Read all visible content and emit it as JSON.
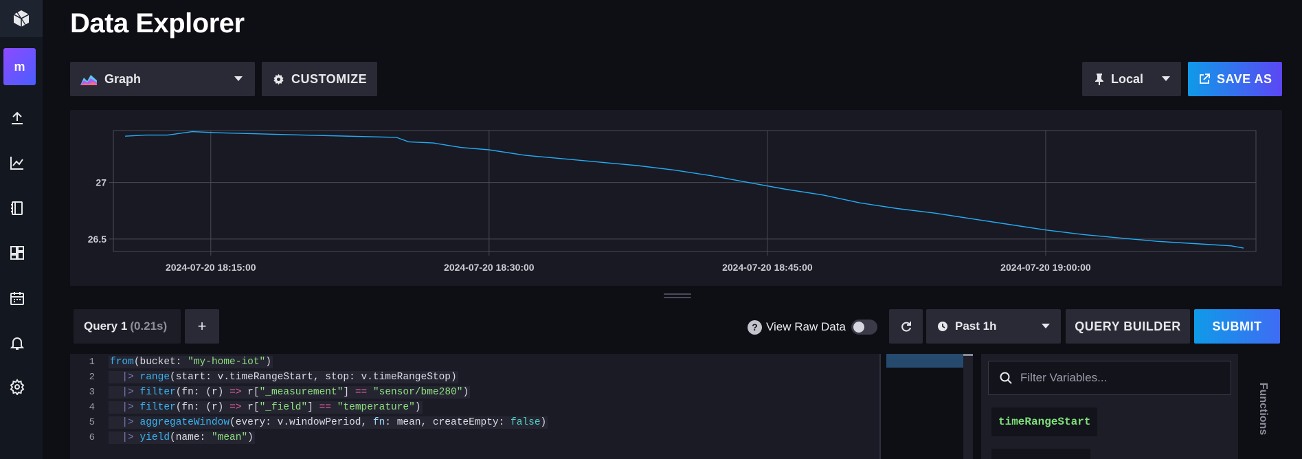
{
  "page": {
    "title": "Data Explorer"
  },
  "sidebar": {
    "logo_icon": "influx-cube-icon",
    "org_initial": "m",
    "items": [
      {
        "name": "upload-icon"
      },
      {
        "name": "data-explorer-icon"
      },
      {
        "name": "notebooks-icon"
      },
      {
        "name": "dashboards-icon"
      },
      {
        "name": "tasks-icon"
      },
      {
        "name": "alerts-icon"
      },
      {
        "name": "settings-icon"
      }
    ]
  },
  "toolbar": {
    "graph_type": "Graph",
    "customize_label": "CUSTOMIZE",
    "timezone": "Local",
    "save_as_label": "SAVE AS"
  },
  "chart_data": {
    "type": "line",
    "title": "",
    "xlabel": "",
    "ylabel": "",
    "x_tick_labels": [
      "2024-07-20 18:15:00",
      "2024-07-20 18:30:00",
      "2024-07-20 18:45:00",
      "2024-07-20 19:00:00"
    ],
    "y_tick_labels": [
      "27",
      "26.5"
    ],
    "ylim": [
      26.39,
      27.46
    ],
    "grid": true,
    "color": "#22adf6",
    "series": [
      {
        "x": [
          "2024-07-20 18:10:23",
          "2024-07-20 18:11:30",
          "2024-07-20 18:12:40",
          "2024-07-20 18:14:00",
          "2024-07-20 18:15:30",
          "2024-07-20 18:20:00",
          "2024-07-20 18:25:00",
          "2024-07-20 18:25:40",
          "2024-07-20 18:27:00",
          "2024-07-20 18:28:30",
          "2024-07-20 18:30:00",
          "2024-07-20 18:32:00",
          "2024-07-20 18:34:00",
          "2024-07-20 18:36:00",
          "2024-07-20 18:38:00",
          "2024-07-20 18:40:00",
          "2024-07-20 18:42:00",
          "2024-07-20 18:44:00",
          "2024-07-20 18:46:00",
          "2024-07-20 18:48:00",
          "2024-07-20 18:50:00",
          "2024-07-20 18:52:00",
          "2024-07-20 18:54:00",
          "2024-07-20 18:56:00",
          "2024-07-20 18:58:00",
          "2024-07-20 19:00:00",
          "2024-07-20 19:02:00",
          "2024-07-20 19:04:00",
          "2024-07-20 19:06:00",
          "2024-07-20 19:08:00",
          "2024-07-20 19:10:00",
          "2024-07-20 19:10:40"
        ],
        "y": [
          27.41,
          27.42,
          27.42,
          27.45,
          27.44,
          27.42,
          27.4,
          27.36,
          27.35,
          27.31,
          27.29,
          27.24,
          27.21,
          27.18,
          27.15,
          27.11,
          27.06,
          27.0,
          26.94,
          26.89,
          26.82,
          26.77,
          26.73,
          26.68,
          26.63,
          26.58,
          26.54,
          26.51,
          26.48,
          26.46,
          26.44,
          26.42
        ]
      }
    ]
  },
  "query": {
    "tab_label": "Query 1",
    "tab_time": "(0.21s)",
    "add_label": "+",
    "view_raw_label": "View Raw Data",
    "time_range": "Past 1h",
    "query_builder_label": "QUERY BUILDER",
    "submit_label": "SUBMIT"
  },
  "editor": {
    "line_numbers": [
      "1",
      "2",
      "3",
      "4",
      "5",
      "6"
    ],
    "l1": {
      "fn": "from",
      "a": "(bucket: ",
      "s": "\"my-home-iot\"",
      "b": ")"
    },
    "l2": {
      "pipe": "  |> ",
      "fn": "range",
      "a": "(start: v.timeRangeStart, stop: v.timeRangeStop)"
    },
    "l3": {
      "pipe": "  |> ",
      "fn": "filter",
      "a": "(fn: (r) ",
      "op": "=>",
      "b": " r[",
      "s1": "\"_measurement\"",
      "c": "] ",
      "op2": "==",
      "d": " ",
      "s2": "\"sensor/bme280\"",
      "e": ")"
    },
    "l4": {
      "pipe": "  |> ",
      "fn": "filter",
      "a": "(fn: (r) ",
      "op": "=>",
      "b": " r[",
      "s1": "\"_field\"",
      "c": "] ",
      "op2": "==",
      "d": " ",
      "s2": "\"temperature\"",
      "e": ")"
    },
    "l5": {
      "pipe": "  |> ",
      "fn": "aggregateWindow",
      "a": "(every: v.windowPeriod, ",
      "k": "fn",
      "b": ": mean, createEmpty: ",
      "bool": "false",
      "c": ")"
    },
    "l6": {
      "pipe": "  |> ",
      "fn": "yield",
      "a": "(name: ",
      "s": "\"mean\"",
      "b": ")"
    }
  },
  "variables": {
    "search_placeholder": "Filter Variables...",
    "items": [
      "timeRangeStart"
    ],
    "functions_tab": "Functions"
  }
}
